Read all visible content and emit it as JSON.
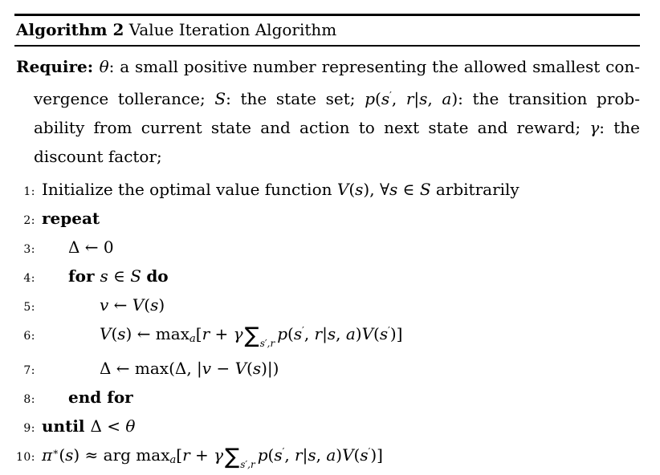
{
  "colors": {
    "text": "#000000",
    "background": "#ffffff",
    "rule": "#000000"
  },
  "algorithm": {
    "label": "Algorithm 2",
    "title": " Value Iteration Algorithm",
    "require_lines": [
      {
        "just": true,
        "cont": false,
        "segs": [
          {
            "t": "Require: ",
            "c": "b"
          },
          {
            "t": "θ",
            "c": "i"
          },
          {
            "t": ": a small positive number representing the allowed smallest con-",
            "c": "r"
          }
        ]
      },
      {
        "just": true,
        "cont": true,
        "segs": [
          {
            "t": "vergence tollerance; ",
            "c": "r"
          },
          {
            "t": "S",
            "c": "c"
          },
          {
            "t": ": the state set; ",
            "c": "r"
          },
          {
            "t": "p",
            "c": "i"
          },
          {
            "t": "(",
            "c": "r"
          },
          {
            "t": "s",
            "c": "i"
          },
          {
            "t": "′",
            "c": "sup"
          },
          {
            "t": ", ",
            "c": "r"
          },
          {
            "t": "r",
            "c": "i"
          },
          {
            "t": "|",
            "c": "r"
          },
          {
            "t": "s",
            "c": "i"
          },
          {
            "t": ", ",
            "c": "r"
          },
          {
            "t": "a",
            "c": "i"
          },
          {
            "t": "): the transition prob-",
            "c": "r"
          }
        ]
      },
      {
        "just": true,
        "cont": true,
        "segs": [
          {
            "t": "ability from current state and action to next state and reward; ",
            "c": "r"
          },
          {
            "t": "γ",
            "c": "i"
          },
          {
            "t": ": the",
            "c": "r"
          }
        ]
      },
      {
        "just": false,
        "cont": true,
        "segs": [
          {
            "t": "discount factor;",
            "c": "r"
          }
        ]
      }
    ],
    "lines": [
      {
        "n": "1:",
        "ind": 0,
        "segs": [
          {
            "t": "Initialize the optimal value function ",
            "c": "r"
          },
          {
            "t": "V",
            "c": "i"
          },
          {
            "t": "(",
            "c": "r"
          },
          {
            "t": "s",
            "c": "i"
          },
          {
            "t": "), ",
            "c": "r"
          },
          {
            "t": "∀",
            "c": "r"
          },
          {
            "t": "s",
            "c": "i"
          },
          {
            "t": " ∈ ",
            "c": "r"
          },
          {
            "t": "S",
            "c": "c"
          },
          {
            "t": " arbitrarily",
            "c": "r"
          }
        ]
      },
      {
        "n": "2:",
        "ind": 0,
        "segs": [
          {
            "t": "repeat",
            "c": "b"
          }
        ]
      },
      {
        "n": "3:",
        "ind": 1,
        "segs": [
          {
            "t": "Δ ← 0",
            "c": "r"
          }
        ]
      },
      {
        "n": "4:",
        "ind": 1,
        "segs": [
          {
            "t": "for ",
            "c": "b"
          },
          {
            "t": "s",
            "c": "i"
          },
          {
            "t": " ∈ ",
            "c": "r"
          },
          {
            "t": "S",
            "c": "c"
          },
          {
            "t": " ",
            "c": "r"
          },
          {
            "t": "do",
            "c": "b"
          }
        ]
      },
      {
        "n": "5:",
        "ind": 2,
        "segs": [
          {
            "t": "v",
            "c": "i"
          },
          {
            "t": " ← ",
            "c": "r"
          },
          {
            "t": "V",
            "c": "i"
          },
          {
            "t": "(",
            "c": "r"
          },
          {
            "t": "s",
            "c": "i"
          },
          {
            "t": ")",
            "c": "r"
          }
        ]
      },
      {
        "n": "6:",
        "ind": 2,
        "segs": [
          {
            "t": "V",
            "c": "i"
          },
          {
            "t": "(",
            "c": "r"
          },
          {
            "t": "s",
            "c": "i"
          },
          {
            "t": ") ← max",
            "c": "r"
          },
          {
            "t": "a",
            "c": "sb"
          },
          {
            "t": "[",
            "c": "r"
          },
          {
            "t": "r",
            "c": "i"
          },
          {
            "t": " + ",
            "c": "r"
          },
          {
            "t": "γ",
            "c": "i"
          },
          {
            "t": "∑",
            "c": "sum"
          },
          {
            "t": "s′,r",
            "c": "ssb"
          },
          {
            "t": "p",
            "c": "i"
          },
          {
            "t": "(",
            "c": "r"
          },
          {
            "t": "s",
            "c": "i"
          },
          {
            "t": "′",
            "c": "sup"
          },
          {
            "t": ", ",
            "c": "r"
          },
          {
            "t": "r",
            "c": "i"
          },
          {
            "t": "|",
            "c": "r"
          },
          {
            "t": "s",
            "c": "i"
          },
          {
            "t": ", ",
            "c": "r"
          },
          {
            "t": "a",
            "c": "i"
          },
          {
            "t": ")",
            "c": "r"
          },
          {
            "t": "V",
            "c": "i"
          },
          {
            "t": "(",
            "c": "r"
          },
          {
            "t": "s",
            "c": "i"
          },
          {
            "t": "′",
            "c": "sup"
          },
          {
            "t": ")]",
            "c": "r"
          }
        ]
      },
      {
        "n": "7:",
        "ind": 2,
        "segs": [
          {
            "t": "Δ ← max(Δ, |",
            "c": "r"
          },
          {
            "t": "v",
            "c": "i"
          },
          {
            "t": " − ",
            "c": "r"
          },
          {
            "t": "V",
            "c": "i"
          },
          {
            "t": "(",
            "c": "r"
          },
          {
            "t": "s",
            "c": "i"
          },
          {
            "t": ")|)",
            "c": "r"
          }
        ]
      },
      {
        "n": "8:",
        "ind": 1,
        "segs": [
          {
            "t": "end for",
            "c": "b"
          }
        ]
      },
      {
        "n": "9:",
        "ind": 0,
        "segs": [
          {
            "t": "until ",
            "c": "b"
          },
          {
            "t": "Δ ",
            "c": "r"
          },
          {
            "t": "< ",
            "c": "r"
          },
          {
            "t": "θ",
            "c": "i"
          }
        ]
      },
      {
        "n": "10:",
        "ind": 0,
        "segs": [
          {
            "t": "π",
            "c": "i"
          },
          {
            "t": "∗",
            "c": "sup"
          },
          {
            "t": "(",
            "c": "r"
          },
          {
            "t": "s",
            "c": "i"
          },
          {
            "t": ") ≈ arg max",
            "c": "r"
          },
          {
            "t": "a",
            "c": "sb"
          },
          {
            "t": "[",
            "c": "r"
          },
          {
            "t": "r",
            "c": "i"
          },
          {
            "t": " + ",
            "c": "r"
          },
          {
            "t": "γ",
            "c": "i"
          },
          {
            "t": "∑",
            "c": "sum"
          },
          {
            "t": "s′,r",
            "c": "ssb"
          },
          {
            "t": "p",
            "c": "i"
          },
          {
            "t": "(",
            "c": "r"
          },
          {
            "t": "s",
            "c": "i"
          },
          {
            "t": "′",
            "c": "sup"
          },
          {
            "t": ", ",
            "c": "r"
          },
          {
            "t": "r",
            "c": "i"
          },
          {
            "t": "|",
            "c": "r"
          },
          {
            "t": "s",
            "c": "i"
          },
          {
            "t": ", ",
            "c": "r"
          },
          {
            "t": "a",
            "c": "i"
          },
          {
            "t": ")",
            "c": "r"
          },
          {
            "t": "V",
            "c": "i"
          },
          {
            "t": "(",
            "c": "r"
          },
          {
            "t": "s",
            "c": "i"
          },
          {
            "t": "′",
            "c": "sup"
          },
          {
            "t": ")]",
            "c": "r"
          }
        ]
      }
    ]
  }
}
